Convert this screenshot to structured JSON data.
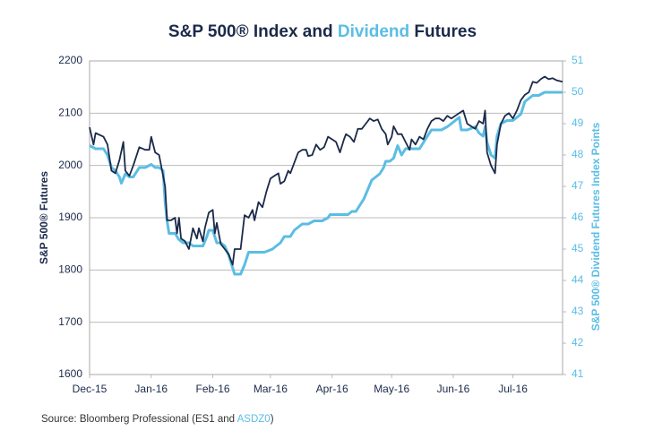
{
  "chart_data": {
    "type": "line",
    "title": [
      "S&P 500® Index and ",
      "Dividend",
      " Futures"
    ],
    "source": [
      "Source: Bloomberg Professional (ES1 and ",
      "ASDZ0",
      ")"
    ],
    "ylabel": "S&P 500® Futures",
    "y2label": "S&P 500® Dividend Futures Index Points",
    "xlim": [
      0,
      238
    ],
    "xticks": [
      {
        "value": 0,
        "label": "Dec-15"
      },
      {
        "value": 31,
        "label": "Jan-16"
      },
      {
        "value": 62,
        "label": "Feb-16"
      },
      {
        "value": 91,
        "label": "Mar-16"
      },
      {
        "value": 122,
        "label": "Apr-16"
      },
      {
        "value": 152,
        "label": "May-16"
      },
      {
        "value": 183,
        "label": "Jun-16"
      },
      {
        "value": 213,
        "label": "Jul-16"
      }
    ],
    "ylim": [
      1600,
      2200
    ],
    "yticks": [
      1600,
      1700,
      1800,
      1900,
      2000,
      2100,
      2200
    ],
    "y2lim": [
      41,
      51
    ],
    "y2ticks": [
      41,
      42,
      43,
      44,
      45,
      46,
      47,
      48,
      49,
      50,
      51
    ],
    "grid": true,
    "series": [
      {
        "name": "S&P 500® Futures",
        "color": "#1b2a4a",
        "axis": "y",
        "x": [
          0,
          2,
          3,
          7,
          9,
          11,
          13,
          15,
          17,
          18,
          20,
          22,
          25,
          28,
          30,
          31,
          33,
          35,
          37,
          38,
          39,
          41,
          43,
          44,
          45,
          46,
          48,
          50,
          52,
          54,
          55,
          57,
          58,
          60,
          62,
          63,
          64,
          66,
          68,
          70,
          72,
          73,
          76,
          78,
          80,
          82,
          83,
          85,
          87,
          89,
          91,
          93,
          95,
          96,
          98,
          100,
          101,
          103,
          105,
          107,
          109,
          110,
          112,
          114,
          116,
          118,
          120,
          122,
          124,
          126,
          128,
          129,
          131,
          133,
          135,
          137,
          139,
          141,
          143,
          145,
          147,
          149,
          150,
          152,
          153,
          155,
          157,
          159,
          161,
          162,
          164,
          166,
          168,
          170,
          172,
          174,
          176,
          178,
          180,
          182,
          184,
          186,
          188,
          190,
          192,
          194,
          196,
          198,
          199,
          200,
          202,
          204,
          205,
          207,
          209,
          211,
          213,
          215,
          217,
          219,
          221,
          223,
          225,
          227,
          229,
          231,
          233,
          235,
          238
        ],
        "values": [
          2073,
          2040,
          2062,
          2055,
          2040,
          1990,
          1985,
          2010,
          2045,
          1990,
          1980,
          2000,
          2035,
          2030,
          2030,
          2055,
          2025,
          2020,
          1980,
          1960,
          1895,
          1895,
          1900,
          1870,
          1900,
          1860,
          1855,
          1840,
          1880,
          1860,
          1880,
          1855,
          1880,
          1910,
          1915,
          1870,
          1890,
          1850,
          1840,
          1830,
          1810,
          1840,
          1840,
          1905,
          1900,
          1915,
          1895,
          1930,
          1920,
          1950,
          1975,
          1980,
          1985,
          1965,
          1970,
          1990,
          1985,
          2005,
          2025,
          2030,
          2030,
          2018,
          2020,
          2040,
          2030,
          2035,
          2055,
          2050,
          2045,
          2025,
          2050,
          2060,
          2055,
          2045,
          2070,
          2070,
          2080,
          2090,
          2085,
          2088,
          2070,
          2060,
          2040,
          2055,
          2075,
          2060,
          2060,
          2045,
          2030,
          2050,
          2040,
          2055,
          2050,
          2070,
          2085,
          2090,
          2090,
          2085,
          2095,
          2090,
          2095,
          2100,
          2105,
          2080,
          2075,
          2070,
          2085,
          2080,
          2105,
          2025,
          2000,
          1985,
          2040,
          2080,
          2095,
          2100,
          2090,
          2105,
          2125,
          2135,
          2140,
          2160,
          2158,
          2165,
          2170,
          2165,
          2167,
          2163,
          2160
        ]
      },
      {
        "name": "S&P 500® Dividend Futures Index Points",
        "color": "#5bbde4",
        "axis": "y2",
        "x": [
          0,
          3,
          7,
          9,
          11,
          13,
          15,
          16,
          18,
          20,
          22,
          25,
          28,
          31,
          33,
          35,
          37,
          38,
          39,
          40,
          43,
          45,
          47,
          50,
          52,
          55,
          57,
          59,
          60,
          62,
          64,
          66,
          68,
          70,
          72,
          73,
          76,
          78,
          80,
          84,
          88,
          92,
          94,
          96,
          98,
          101,
          103,
          105,
          107,
          110,
          113,
          117,
          120,
          121,
          125,
          130,
          132,
          134,
          136,
          138,
          140,
          142,
          144,
          146,
          148,
          149,
          151,
          153,
          155,
          157,
          159,
          163,
          166,
          168,
          170,
          172,
          174,
          177,
          180,
          182,
          184,
          186,
          187,
          190,
          194,
          196,
          198,
          199,
          200,
          202,
          204,
          205,
          207,
          210,
          213,
          215,
          217,
          219,
          221,
          223,
          226,
          229,
          232,
          238
        ],
        "values": [
          48.3,
          48.2,
          48.2,
          48.0,
          47.6,
          47.5,
          47.3,
          47.1,
          47.4,
          47.3,
          47.3,
          47.6,
          47.6,
          47.7,
          47.6,
          47.6,
          47.5,
          46.5,
          45.9,
          45.5,
          45.5,
          45.3,
          45.2,
          45.2,
          45.1,
          45.1,
          45.1,
          45.4,
          45.6,
          45.6,
          45.2,
          45.2,
          45.1,
          44.8,
          44.4,
          44.2,
          44.2,
          44.5,
          44.9,
          44.9,
          44.9,
          45.0,
          45.1,
          45.2,
          45.4,
          45.4,
          45.6,
          45.7,
          45.8,
          45.8,
          45.9,
          45.9,
          46.0,
          46.1,
          46.1,
          46.1,
          46.2,
          46.2,
          46.4,
          46.6,
          46.9,
          47.2,
          47.3,
          47.4,
          47.6,
          47.8,
          47.8,
          47.9,
          48.3,
          48.0,
          48.2,
          48.2,
          48.2,
          48.4,
          48.6,
          48.8,
          48.8,
          48.8,
          48.9,
          49.0,
          49.1,
          49.2,
          48.8,
          48.8,
          48.9,
          48.7,
          48.6,
          48.9,
          48.4,
          48.0,
          47.9,
          48.6,
          49.0,
          49.1,
          49.1,
          49.2,
          49.3,
          49.7,
          49.8,
          49.9,
          49.9,
          50.0,
          50.0,
          50.0
        ]
      }
    ]
  }
}
